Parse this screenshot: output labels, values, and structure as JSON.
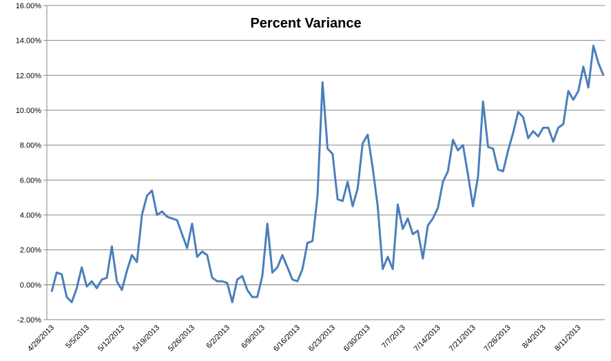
{
  "chart_data": {
    "type": "line",
    "title": "Percent Variance",
    "xlabel": "",
    "ylabel": "",
    "ylim": [
      -0.02,
      0.16
    ],
    "yticks": [
      -0.02,
      0.0,
      0.02,
      0.04,
      0.06,
      0.08,
      0.1,
      0.12,
      0.14,
      0.16
    ],
    "ytick_labels": [
      "-2.00%",
      "0.00%",
      "2.00%",
      "4.00%",
      "6.00%",
      "8.00%",
      "10.00%",
      "12.00%",
      "14.00%",
      "16.00%"
    ],
    "grid": true,
    "legend": "none",
    "line_color": "#4a7ebb",
    "xtick_labels": [
      "4/28/2013",
      "5/5/2013",
      "5/12/2013",
      "5/19/2013",
      "5/26/2013",
      "6/2/2013",
      "6/9/2013",
      "6/16/2013",
      "6/23/2013",
      "6/30/2013",
      "7/7/2013",
      "7/14/2013",
      "7/21/2013",
      "7/28/2013",
      "8/4/2013",
      "8/11/2013"
    ],
    "series": [
      {
        "values": [
          -0.004,
          0.007,
          0.006,
          -0.007,
          -0.01,
          -0.002,
          0.01,
          -0.001,
          0.002,
          -0.002,
          0.003,
          0.004,
          0.022,
          0.002,
          -0.003,
          0.008,
          0.017,
          0.013,
          0.04,
          0.051,
          0.054,
          0.04,
          0.042,
          0.039,
          0.038,
          0.037,
          0.029,
          0.021,
          0.035,
          0.016,
          0.019,
          0.017,
          0.004,
          0.002,
          0.002,
          0.001,
          -0.01,
          0.003,
          0.005,
          -0.003,
          -0.007,
          -0.007,
          0.005,
          0.035,
          0.007,
          0.01,
          0.017,
          0.01,
          0.003,
          0.002,
          0.009,
          0.024,
          0.025,
          0.051,
          0.116,
          0.078,
          0.075,
          0.049,
          0.048,
          0.059,
          0.045,
          0.055,
          0.081,
          0.086,
          0.067,
          0.045,
          0.009,
          0.016,
          0.009,
          0.046,
          0.032,
          0.038,
          0.029,
          0.031,
          0.015,
          0.034,
          0.038,
          0.044,
          0.059,
          0.065,
          0.083,
          0.077,
          0.08,
          0.063,
          0.045,
          0.062,
          0.105,
          0.079,
          0.078,
          0.066,
          0.065,
          0.077,
          0.087,
          0.099,
          0.096,
          0.084,
          0.088,
          0.085,
          0.09,
          0.09,
          0.082,
          0.09,
          0.092,
          0.111,
          0.106,
          0.111,
          0.125,
          0.113,
          0.137,
          0.127,
          0.12
        ]
      }
    ]
  }
}
